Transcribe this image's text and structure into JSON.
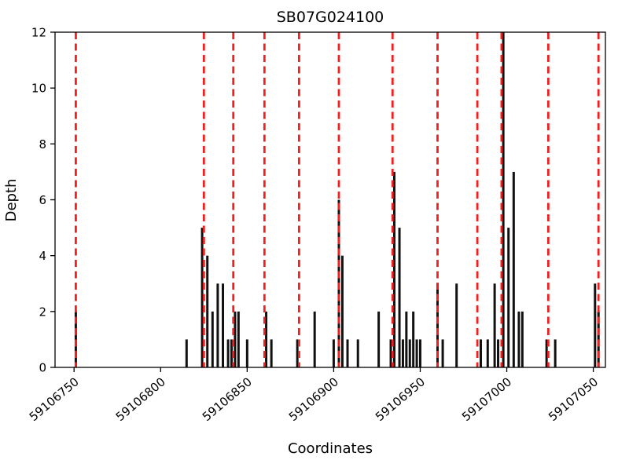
{
  "chart_data": {
    "type": "bar",
    "title": "SB07G024100",
    "xlabel": "Coordinates",
    "ylabel": "Depth",
    "xlim": [
      59106739,
      59107057
    ],
    "ylim": [
      0,
      12
    ],
    "xticks": [
      59106750,
      59106800,
      59106850,
      59106900,
      59106950,
      59107000,
      59107050
    ],
    "yticks": [
      0,
      2,
      4,
      6,
      8,
      10,
      12
    ],
    "bar_color": "#111111",
    "marker_line_color": "#ee2020",
    "axis_color": "#000000",
    "bars": [
      {
        "x": 59106751,
        "depth": 2
      },
      {
        "x": 59106815,
        "depth": 1
      },
      {
        "x": 59106824,
        "depth": 5
      },
      {
        "x": 59106827,
        "depth": 4
      },
      {
        "x": 59106830,
        "depth": 2
      },
      {
        "x": 59106833,
        "depth": 3
      },
      {
        "x": 59106836,
        "depth": 3
      },
      {
        "x": 59106839,
        "depth": 1
      },
      {
        "x": 59106841,
        "depth": 1
      },
      {
        "x": 59106843,
        "depth": 2
      },
      {
        "x": 59106845,
        "depth": 2
      },
      {
        "x": 59106850,
        "depth": 1
      },
      {
        "x": 59106861,
        "depth": 2
      },
      {
        "x": 59106864,
        "depth": 1
      },
      {
        "x": 59106879,
        "depth": 1
      },
      {
        "x": 59106889,
        "depth": 2
      },
      {
        "x": 59106900,
        "depth": 1
      },
      {
        "x": 59106903,
        "depth": 6
      },
      {
        "x": 59106905,
        "depth": 4
      },
      {
        "x": 59106908,
        "depth": 1
      },
      {
        "x": 59106914,
        "depth": 1
      },
      {
        "x": 59106926,
        "depth": 2
      },
      {
        "x": 59106933,
        "depth": 1
      },
      {
        "x": 59106935,
        "depth": 7
      },
      {
        "x": 59106938,
        "depth": 5
      },
      {
        "x": 59106940,
        "depth": 1
      },
      {
        "x": 59106942,
        "depth": 2
      },
      {
        "x": 59106944,
        "depth": 1
      },
      {
        "x": 59106946,
        "depth": 2
      },
      {
        "x": 59106948,
        "depth": 1
      },
      {
        "x": 59106950,
        "depth": 1
      },
      {
        "x": 59106960,
        "depth": 3
      },
      {
        "x": 59106963,
        "depth": 1
      },
      {
        "x": 59106971,
        "depth": 3
      },
      {
        "x": 59106985,
        "depth": 1
      },
      {
        "x": 59106989,
        "depth": 1
      },
      {
        "x": 59106993,
        "depth": 3
      },
      {
        "x": 59106995,
        "depth": 1
      },
      {
        "x": 59106998,
        "depth": 12
      },
      {
        "x": 59107001,
        "depth": 5
      },
      {
        "x": 59107004,
        "depth": 7
      },
      {
        "x": 59107007,
        "depth": 2
      },
      {
        "x": 59107009,
        "depth": 2
      },
      {
        "x": 59107023,
        "depth": 1
      },
      {
        "x": 59107028,
        "depth": 1
      },
      {
        "x": 59107051,
        "depth": 3
      },
      {
        "x": 59107053,
        "depth": 2
      }
    ],
    "red_dashed_lines": [
      59106751,
      59106825,
      59106842,
      59106860,
      59106880,
      59106903,
      59106934,
      59106960,
      59106983,
      59106997,
      59107024,
      59107053
    ]
  }
}
